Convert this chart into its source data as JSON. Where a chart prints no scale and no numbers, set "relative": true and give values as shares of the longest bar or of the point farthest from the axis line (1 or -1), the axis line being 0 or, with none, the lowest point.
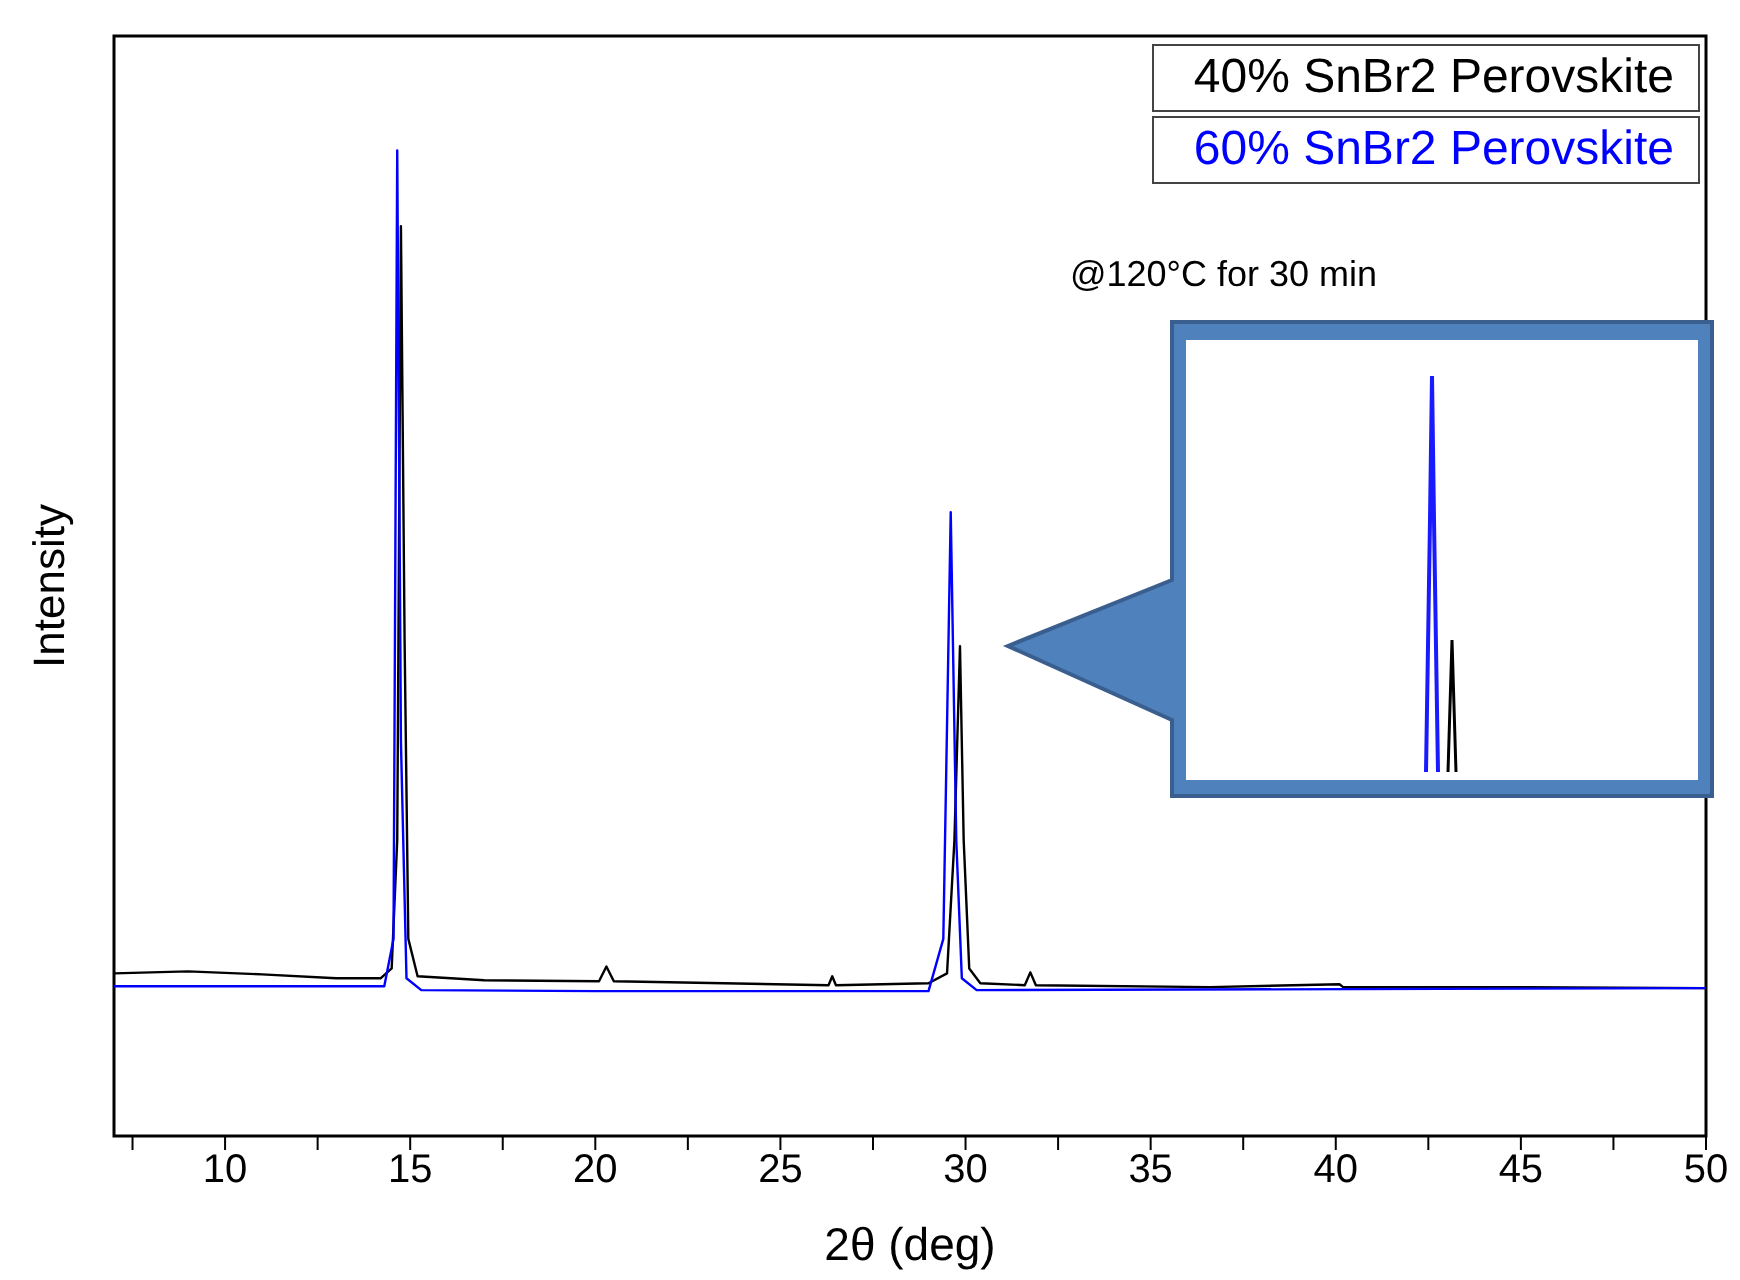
{
  "chart_data": {
    "type": "line",
    "relative": true,
    "xlabel": "2θ (deg)",
    "ylabel": "Intensity",
    "legend": "top right",
    "marker": "none",
    "annotations": [
      "@120°C for 30 min"
    ],
    "xlim": [
      7,
      50
    ],
    "xticks": [
      {
        "value": 7.5,
        "label": null
      },
      10,
      {
        "value": 12.5,
        "label": null
      },
      15,
      {
        "value": 17.5,
        "label": null
      },
      20,
      {
        "value": 22.5,
        "label": null
      },
      25,
      {
        "value": 27.5,
        "label": null
      },
      30,
      {
        "value": 32.5,
        "label": null
      },
      35,
      {
        "value": 37.5,
        "label": null
      },
      40,
      {
        "value": 42.5,
        "label": null
      },
      45,
      {
        "value": 47.5,
        "label": null
      },
      50
    ],
    "series": [
      {
        "name": "40% SnBr2 Perovskite",
        "color": "#000000",
        "x": [
          7,
          9,
          11,
          13,
          14.2,
          14.5,
          14.65,
          14.75,
          14.85,
          14.95,
          15.2,
          17,
          20.1,
          20.3,
          20.5,
          22,
          26.3,
          26.4,
          26.5,
          29,
          29.5,
          29.7,
          29.85,
          29.95,
          30.1,
          30.4,
          31.6,
          31.75,
          31.9,
          36.6,
          40.1,
          40.2,
          42.7,
          45.2,
          50
        ],
        "values": [
          0.165,
          0.167,
          0.164,
          0.16,
          0.16,
          0.17,
          0.3,
          0.923,
          0.5,
          0.2,
          0.162,
          0.158,
          0.157,
          0.172,
          0.157,
          0.156,
          0.153,
          0.162,
          0.153,
          0.155,
          0.165,
          0.3,
          0.497,
          0.3,
          0.17,
          0.155,
          0.153,
          0.166,
          0.153,
          0.151,
          0.154,
          0.151,
          0.151,
          0.151,
          0.15
        ]
      },
      {
        "name": "60% SnBr2 Perovskite",
        "color": "#0000ff",
        "x": [
          7,
          14.3,
          14.55,
          14.65,
          14.75,
          14.9,
          15.3,
          20,
          29,
          29.4,
          29.6,
          29.75,
          29.9,
          30.3,
          50
        ],
        "values": [
          0.152,
          0.152,
          0.2,
          1,
          0.4,
          0.16,
          0.148,
          0.147,
          0.147,
          0.2,
          0.633,
          0.3,
          0.16,
          0.148,
          0.15
        ]
      }
    ]
  }
}
